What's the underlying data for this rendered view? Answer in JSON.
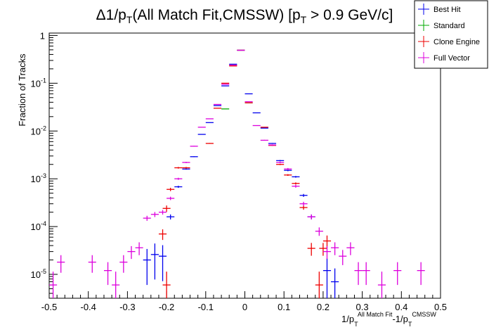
{
  "chart_data": {
    "type": "scatter",
    "title_prefix": "Δ1/p",
    "title_sub": "T",
    "title_rest": "(All Match Fit,CMSSW) [p",
    "title_sub2": "T",
    "title_end": " > 0.9 GeV/c]",
    "ylabel": "Fraction of Tracks",
    "xlabel_parts": [
      "1/p",
      "T",
      "All Match Fit",
      "-1/p",
      "T",
      "CMSSW"
    ],
    "xlim": [
      -0.5,
      0.5
    ],
    "ylim_log10": [
      -5.5,
      0.05
    ],
    "x_ticks": [
      {
        "v": -0.5,
        "label": "-0.5"
      },
      {
        "v": -0.4,
        "label": "-0.4"
      },
      {
        "v": -0.3,
        "label": "-0.3"
      },
      {
        "v": -0.2,
        "label": "-0.2"
      },
      {
        "v": -0.1,
        "label": "-0.1"
      },
      {
        "v": 0.0,
        "label": "0"
      },
      {
        "v": 0.1,
        "label": "0.1"
      },
      {
        "v": 0.2,
        "label": "0.2"
      },
      {
        "v": 0.3,
        "label": "0.3"
      },
      {
        "v": 0.4,
        "label": "0.4"
      },
      {
        "v": 0.5,
        "label": "0.5"
      }
    ],
    "y_ticks": [
      {
        "e": 0,
        "base": "1",
        "exp": ""
      },
      {
        "e": -1,
        "base": "10",
        "exp": "-1"
      },
      {
        "e": -2,
        "base": "10",
        "exp": "-2"
      },
      {
        "e": -3,
        "base": "10",
        "exp": "-3"
      },
      {
        "e": -4,
        "base": "10",
        "exp": "-4"
      },
      {
        "e": -5,
        "base": "10",
        "exp": "-5"
      }
    ],
    "bin_width": 0.02,
    "series": [
      {
        "name": "Best Hit",
        "color": "#0000ee",
        "x": [
          -0.25,
          -0.23,
          -0.21,
          -0.19,
          -0.17,
          -0.15,
          -0.13,
          -0.11,
          -0.09,
          -0.07,
          -0.05,
          -0.03,
          -0.01,
          0.01,
          0.03,
          0.05,
          0.07,
          0.09,
          0.11,
          0.13,
          0.15,
          0.17,
          0.21,
          0.23
        ],
        "y": [
          2e-05,
          2.6e-05,
          2.4e-05,
          0.00016,
          0.00068,
          0.0016,
          0.0029,
          0.0085,
          0.015,
          0.034,
          0.088,
          0.25,
          0.49,
          0.06,
          0.024,
          0.0115,
          0.0055,
          0.0024,
          0.0015,
          0.0011,
          0.00045,
          0.00016,
          1.2e-05,
          7e-06
        ],
        "err": [
          0.7,
          0.7,
          0.7,
          0.12,
          0.05,
          0.03,
          0.02,
          0.01,
          0.01,
          0.01,
          0.005,
          0.004,
          0.003,
          0.008,
          0.01,
          0.015,
          0.02,
          0.03,
          0.04,
          0.04,
          0.07,
          0.12,
          0.8,
          0.9
        ]
      },
      {
        "name": "Standard",
        "color": "#00aa00",
        "x": [
          -0.05,
          -0.03,
          -0.01,
          0.01
        ],
        "y": [
          0.029,
          0.24,
          0.49,
          0.039
        ],
        "err": [
          0.01,
          0.004,
          0.003,
          0.01
        ]
      },
      {
        "name": "Clone Engine",
        "color": "#ee0000",
        "x": [
          -0.21,
          -0.19,
          -0.17,
          -0.15,
          -0.13,
          -0.11,
          -0.09,
          -0.07,
          -0.05,
          -0.03,
          -0.01,
          0.01,
          0.03,
          0.05,
          0.07,
          0.09,
          0.11,
          0.13,
          0.15,
          0.17,
          0.19,
          0.21
        ],
        "y": [
          7e-05,
          6e-06,
          0.00024,
          0.0006,
          0.0017,
          0.0017,
          0.0055,
          0.03,
          0.1,
          0.23,
          0.49,
          0.039,
          0.012,
          0.005,
          0.002,
          0.0012,
          0.0008,
          0.00025,
          3.5e-05,
          6e-06,
          3.5e-05,
          5e-05
        ],
        "err": [
          0.25,
          0.9,
          0.15,
          0.08,
          0.04,
          0.04,
          0.02,
          0.01,
          0.005,
          0.004,
          0.003,
          0.01,
          0.015,
          0.02,
          0.03,
          0.04,
          0.05,
          0.1,
          0.3,
          0.9,
          0.3,
          0.3
        ],
        "x_override": [
          -0.21,
          -0.2,
          -0.2,
          -0.19,
          -0.17,
          -0.15,
          -0.09,
          -0.07,
          -0.05,
          -0.03,
          -0.01,
          0.01,
          0.05,
          0.07,
          0.09,
          0.11,
          0.13,
          0.15,
          0.17,
          0.19,
          0.2,
          0.21
        ]
      },
      {
        "name": "Full Vector",
        "color": "#dd00dd",
        "x": [
          -0.49,
          -0.47,
          -0.39,
          -0.35,
          -0.33,
          -0.31,
          -0.29,
          -0.27,
          -0.25,
          -0.23,
          -0.21,
          -0.19,
          -0.17,
          -0.15,
          -0.13,
          -0.11,
          -0.09,
          -0.07,
          -0.05,
          -0.03,
          -0.01,
          0.01,
          0.03,
          0.05,
          0.07,
          0.09,
          0.11,
          0.13,
          0.15,
          0.17,
          0.19,
          0.21,
          0.23,
          0.25,
          0.27,
          0.29,
          0.31,
          0.35,
          0.39,
          0.45
        ],
        "y": [
          6e-06,
          1.8e-05,
          1.8e-05,
          1.2e-05,
          6e-06,
          1.8e-05,
          3e-05,
          3.6e-05,
          0.00015,
          0.00018,
          0.0002,
          0.00039,
          0.001,
          0.0022,
          0.0048,
          0.012,
          0.018,
          0.036,
          0.095,
          0.24,
          0.49,
          0.041,
          0.013,
          0.0064,
          0.0051,
          0.0022,
          0.0016,
          0.0007,
          0.0003,
          0.00016,
          8e-05,
          3e-05,
          3.6e-05,
          2.4e-05,
          3.6e-05,
          1.2e-05,
          1.2e-05,
          6e-06,
          1.2e-05,
          1.2e-05
        ],
        "err": [
          0.9,
          0.4,
          0.4,
          0.5,
          0.9,
          0.4,
          0.3,
          0.3,
          0.12,
          0.12,
          0.11,
          0.08,
          0.05,
          0.03,
          0.02,
          0.01,
          0.01,
          0.01,
          0.005,
          0.004,
          0.003,
          0.01,
          0.015,
          0.02,
          0.03,
          0.04,
          0.05,
          0.07,
          0.1,
          0.12,
          0.2,
          0.3,
          0.3,
          0.35,
          0.3,
          0.5,
          0.5,
          0.9,
          0.5,
          0.5
        ]
      }
    ]
  }
}
